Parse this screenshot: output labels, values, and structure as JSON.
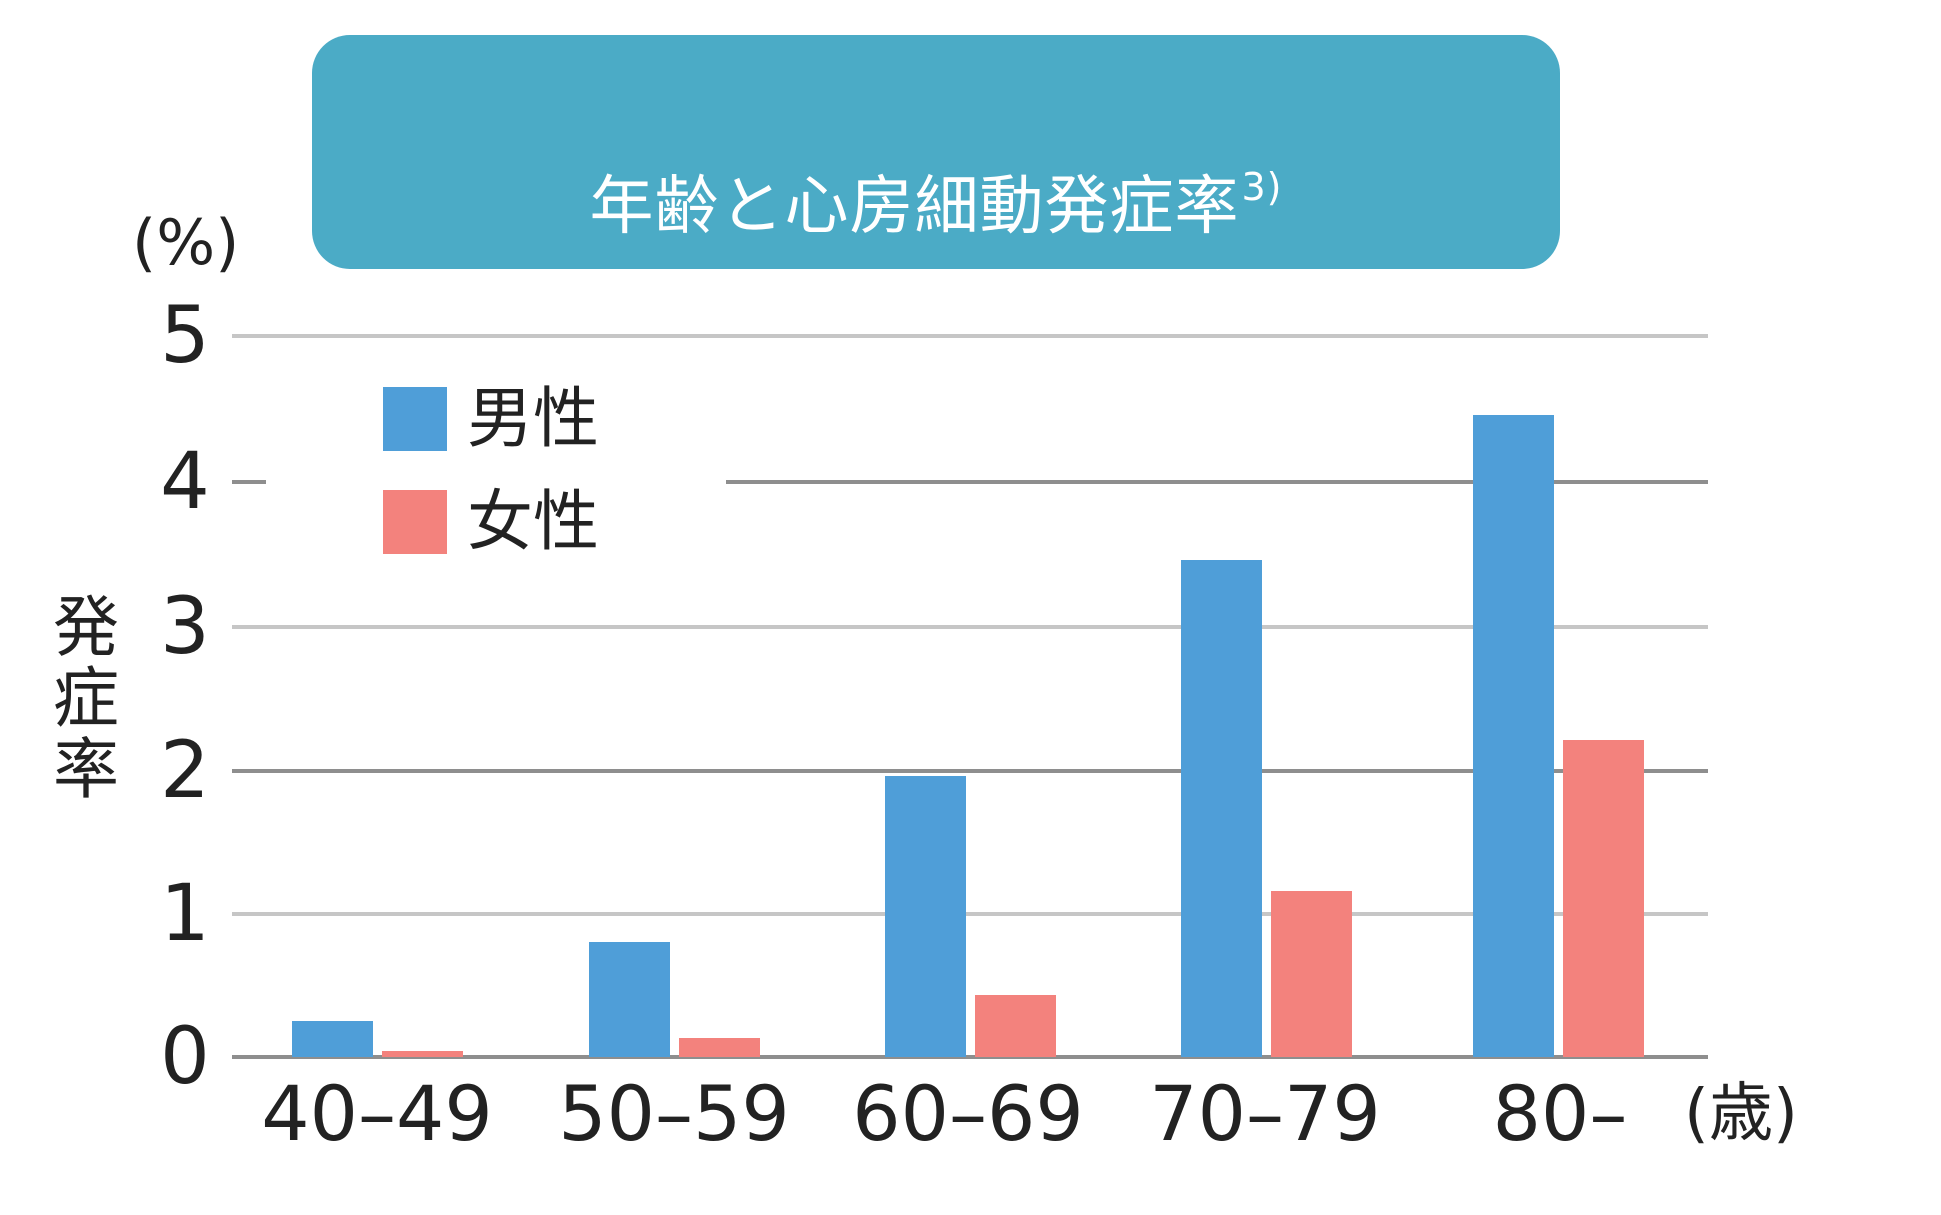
{
  "title": {
    "text": "年齢と心房細動発症率",
    "superscript": "3)"
  },
  "colors": {
    "title_bg": "#4babc6",
    "male": "#4f9ed8",
    "female": "#f3827d",
    "grid_light": "#c6c6c6",
    "grid_dark": "#8e8e8e"
  },
  "axes": {
    "y_unit": "(%)",
    "y_label_chars": [
      "発",
      "症",
      "率"
    ],
    "y_ticks": [
      "5",
      "4",
      "3",
      "2",
      "1",
      "0"
    ],
    "x_unit": "(歳)",
    "x_ticks": [
      "40–49",
      "50–59",
      "60–69",
      "70–79",
      "80–"
    ]
  },
  "legend": {
    "male": "男性",
    "female": "女性"
  },
  "chart_data": {
    "type": "bar",
    "title": "年齢と心房細動発症率3)",
    "xlabel": "(歳)",
    "ylabel": "発症率 (%)",
    "categories": [
      "40–49",
      "50–59",
      "60–69",
      "70–79",
      "80–"
    ],
    "series": [
      {
        "name": "男性",
        "color": "#4f9ed8",
        "values": [
          0.25,
          0.8,
          1.95,
          3.45,
          4.45
        ]
      },
      {
        "name": "女性",
        "color": "#f3827d",
        "values": [
          0.04,
          0.13,
          0.43,
          1.15,
          2.2
        ]
      }
    ],
    "ylim": [
      0,
      5
    ],
    "yticks": [
      0,
      1,
      2,
      3,
      4,
      5
    ],
    "grid": true,
    "legend_position": "upper-left inside plot"
  }
}
